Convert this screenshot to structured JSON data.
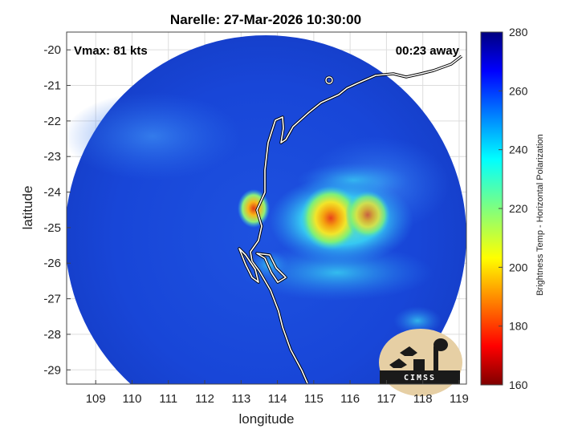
{
  "title": "Narelle: 27-Mar-2026 10:30:00",
  "vmax_label": "Vmax: 81 kts",
  "away_label": "00:23 away",
  "xlabel": "longitude",
  "ylabel": "latitude",
  "colorbar_label": "Brightness Temp - Horizontal Polarization",
  "logo_text": "CIMSS",
  "colors": {
    "background": "#ffffff",
    "land_coast": "#ffffff",
    "grid": "#dddddd"
  },
  "map_data": {
    "type": "heatmap",
    "xlim": [
      108.2,
      119.2
    ],
    "ylim": [
      -29.4,
      -19.5
    ],
    "xticks": [
      "109",
      "110",
      "111",
      "112",
      "113",
      "114",
      "115",
      "116",
      "117",
      "118",
      "119"
    ],
    "yticks": [
      "-20",
      "-21",
      "-22",
      "-23",
      "-24",
      "-25",
      "-26",
      "-27",
      "-28",
      "-29"
    ],
    "colorbar": {
      "min": 160,
      "max": 280,
      "ticks": [
        "160",
        "180",
        "200",
        "220",
        "240",
        "260",
        "280"
      ],
      "colormap": "jet"
    },
    "features": {
      "storm_center": {
        "lon": 115.4,
        "lat": -24.9,
        "brightness_temp": 185
      },
      "coastal_convection": {
        "lon": 113.2,
        "lat": -24.4,
        "brightness_temp": 190
      },
      "swath_edge_temp": 262
    }
  }
}
